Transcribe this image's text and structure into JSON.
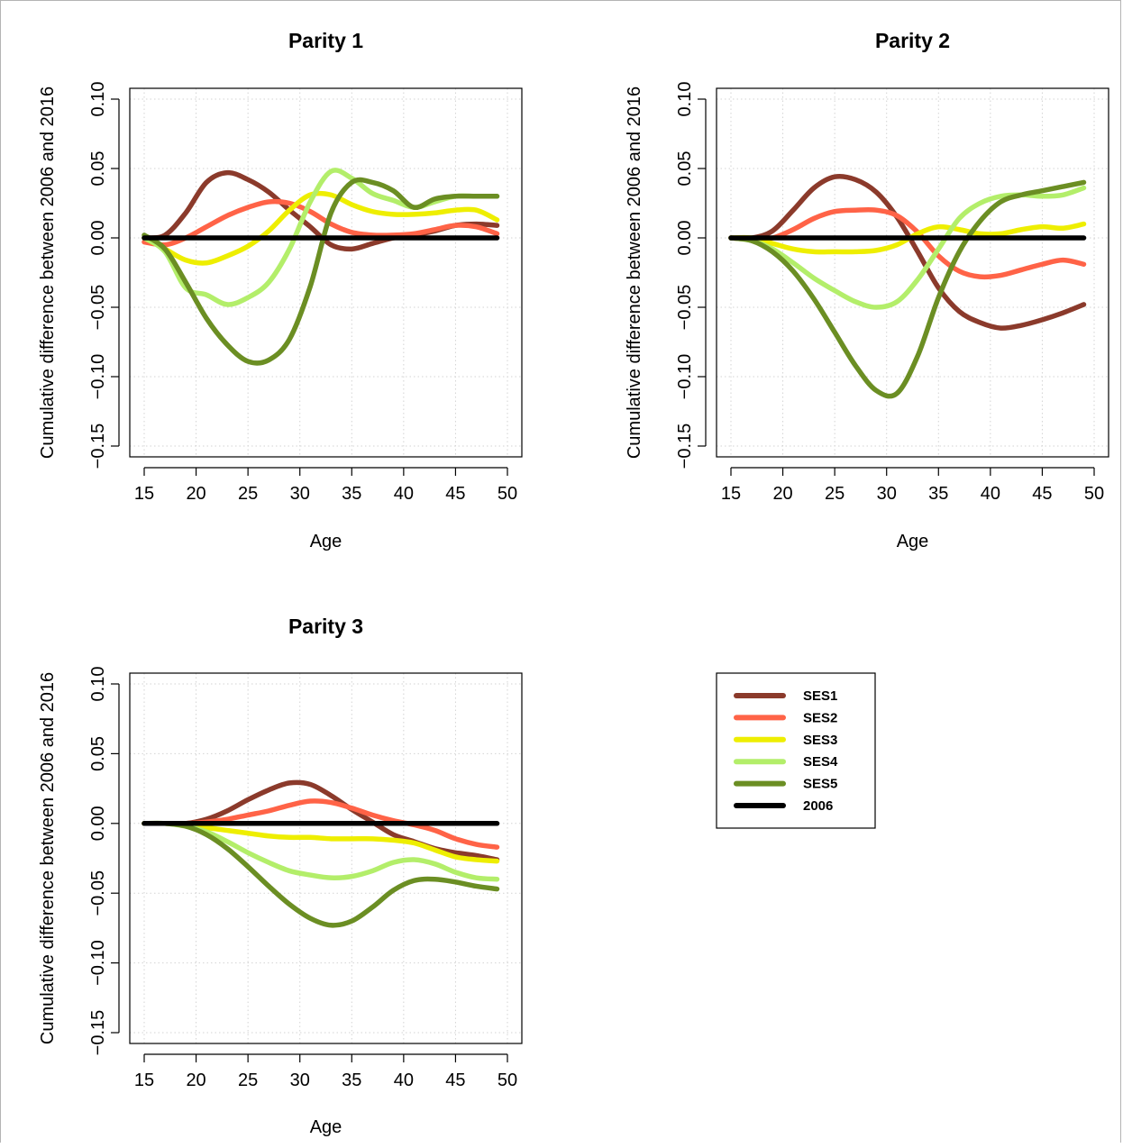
{
  "colors": {
    "SES1": "#8b3a2b",
    "SES2": "#ff6347",
    "SES3": "#eeee00",
    "SES4": "#b3ee6a",
    "SES5": "#6b8e23",
    "2006": "#000000"
  },
  "legend": {
    "entries": [
      "SES1",
      "SES2",
      "SES3",
      "SES4",
      "SES5",
      "2006"
    ]
  },
  "chart_data": [
    {
      "type": "line",
      "title": "Parity 1",
      "xlabel": "Age",
      "ylabel": "Cumulative difference between 2006 and 2016",
      "xlim": [
        15,
        50
      ],
      "ylim": [
        -0.15,
        0.1
      ],
      "xticks": [
        "15",
        "20",
        "25",
        "30",
        "35",
        "40",
        "45",
        "50"
      ],
      "yticks": [
        "−0.15",
        "−0.10",
        "−0.05",
        "0.00",
        "0.05",
        "0.10"
      ],
      "grid": true,
      "x": [
        15,
        17,
        19,
        21,
        23,
        25,
        27,
        29,
        31,
        33,
        35,
        37,
        39,
        41,
        43,
        45,
        47,
        49
      ],
      "series": [
        {
          "name": "SES1",
          "values": [
            0.0,
            0.002,
            0.018,
            0.04,
            0.047,
            0.042,
            0.033,
            0.02,
            0.008,
            -0.005,
            -0.008,
            -0.004,
            0.0,
            0.002,
            0.005,
            0.009,
            0.01,
            0.009
          ]
        },
        {
          "name": "SES2",
          "values": [
            -0.003,
            -0.005,
            0.0,
            0.008,
            0.016,
            0.022,
            0.026,
            0.025,
            0.019,
            0.01,
            0.004,
            0.002,
            0.002,
            0.003,
            0.006,
            0.009,
            0.008,
            0.003
          ]
        },
        {
          "name": "SES3",
          "values": [
            0.0,
            -0.008,
            -0.016,
            -0.018,
            -0.013,
            -0.006,
            0.005,
            0.02,
            0.031,
            0.031,
            0.024,
            0.019,
            0.017,
            0.017,
            0.018,
            0.02,
            0.02,
            0.013
          ]
        },
        {
          "name": "SES4",
          "values": [
            0.0,
            -0.01,
            -0.036,
            -0.041,
            -0.048,
            -0.043,
            -0.032,
            -0.008,
            0.026,
            0.048,
            0.043,
            0.032,
            0.027,
            0.022,
            0.026,
            0.03,
            0.03,
            0.03
          ]
        },
        {
          "name": "SES5",
          "values": [
            0.002,
            -0.008,
            -0.032,
            -0.058,
            -0.077,
            -0.089,
            -0.088,
            -0.073,
            -0.035,
            0.018,
            0.04,
            0.04,
            0.034,
            0.022,
            0.028,
            0.03,
            0.03,
            0.03
          ]
        },
        {
          "name": "2006",
          "values": [
            0,
            0,
            0,
            0,
            0,
            0,
            0,
            0,
            0,
            0,
            0,
            0,
            0,
            0,
            0,
            0,
            0,
            0
          ]
        }
      ]
    },
    {
      "type": "line",
      "title": "Parity 2",
      "xlabel": "Age",
      "ylabel": "Cumulative difference between 2006 and 2016",
      "xlim": [
        15,
        50
      ],
      "ylim": [
        -0.15,
        0.1
      ],
      "xticks": [
        "15",
        "20",
        "25",
        "30",
        "35",
        "40",
        "45",
        "50"
      ],
      "yticks": [
        "−0.15",
        "−0.10",
        "−0.05",
        "0.00",
        "0.05",
        "0.10"
      ],
      "grid": true,
      "x": [
        15,
        17,
        19,
        21,
        23,
        25,
        27,
        29,
        31,
        33,
        35,
        37,
        39,
        41,
        43,
        45,
        47,
        49
      ],
      "series": [
        {
          "name": "SES1",
          "values": [
            0.0,
            0.0,
            0.005,
            0.02,
            0.036,
            0.044,
            0.042,
            0.033,
            0.015,
            -0.01,
            -0.036,
            -0.053,
            -0.061,
            -0.065,
            -0.063,
            -0.059,
            -0.054,
            -0.048
          ]
        },
        {
          "name": "SES2",
          "values": [
            0.0,
            -0.001,
            0.0,
            0.006,
            0.014,
            0.019,
            0.02,
            0.02,
            0.016,
            0.004,
            -0.013,
            -0.024,
            -0.028,
            -0.027,
            -0.023,
            -0.019,
            -0.016,
            -0.019
          ]
        },
        {
          "name": "SES3",
          "values": [
            0.0,
            0.0,
            -0.004,
            -0.008,
            -0.01,
            -0.01,
            -0.01,
            -0.009,
            -0.005,
            0.003,
            0.008,
            0.006,
            0.003,
            0.003,
            0.006,
            0.008,
            0.007,
            0.01
          ]
        },
        {
          "name": "SES4",
          "values": [
            0.0,
            -0.002,
            -0.008,
            -0.018,
            -0.029,
            -0.038,
            -0.046,
            -0.05,
            -0.046,
            -0.03,
            -0.008,
            0.014,
            0.025,
            0.03,
            0.031,
            0.03,
            0.031,
            0.036
          ]
        },
        {
          "name": "SES5",
          "values": [
            0.0,
            -0.002,
            -0.01,
            -0.024,
            -0.044,
            -0.068,
            -0.092,
            -0.11,
            -0.112,
            -0.085,
            -0.043,
            -0.01,
            0.012,
            0.026,
            0.031,
            0.034,
            0.037,
            0.04
          ]
        },
        {
          "name": "2006",
          "values": [
            0,
            0,
            0,
            0,
            0,
            0,
            0,
            0,
            0,
            0,
            0,
            0,
            0,
            0,
            0,
            0,
            0,
            0
          ]
        }
      ]
    },
    {
      "type": "line",
      "title": "Parity 3",
      "xlabel": "Age",
      "ylabel": "Cumulative difference between 2006 and 2016",
      "xlim": [
        15,
        50
      ],
      "ylim": [
        -0.15,
        0.1
      ],
      "xticks": [
        "15",
        "20",
        "25",
        "30",
        "35",
        "40",
        "45",
        "50"
      ],
      "yticks": [
        "−0.15",
        "−0.10",
        "−0.05",
        "0.00",
        "0.05",
        "0.10"
      ],
      "grid": true,
      "x": [
        15,
        17,
        19,
        21,
        23,
        25,
        27,
        29,
        31,
        33,
        35,
        37,
        39,
        41,
        43,
        45,
        47,
        49
      ],
      "series": [
        {
          "name": "SES1",
          "values": [
            0.0,
            0.0,
            0.0,
            0.003,
            0.009,
            0.017,
            0.024,
            0.029,
            0.028,
            0.02,
            0.01,
            0.001,
            -0.008,
            -0.013,
            -0.018,
            -0.021,
            -0.023,
            -0.026
          ]
        },
        {
          "name": "SES2",
          "values": [
            0.0,
            0.0,
            0.0,
            0.001,
            0.003,
            0.006,
            0.009,
            0.013,
            0.016,
            0.015,
            0.011,
            0.006,
            0.002,
            -0.001,
            -0.005,
            -0.011,
            -0.015,
            -0.017
          ]
        },
        {
          "name": "SES3",
          "values": [
            0.0,
            0.0,
            -0.001,
            -0.003,
            -0.005,
            -0.007,
            -0.009,
            -0.01,
            -0.01,
            -0.011,
            -0.011,
            -0.011,
            -0.012,
            -0.014,
            -0.019,
            -0.024,
            -0.026,
            -0.027
          ]
        },
        {
          "name": "SES4",
          "values": [
            0.0,
            0.0,
            -0.002,
            -0.006,
            -0.013,
            -0.021,
            -0.028,
            -0.034,
            -0.037,
            -0.039,
            -0.038,
            -0.034,
            -0.028,
            -0.026,
            -0.029,
            -0.035,
            -0.039,
            -0.04
          ]
        },
        {
          "name": "SES5",
          "values": [
            0.0,
            0.0,
            -0.002,
            -0.008,
            -0.018,
            -0.031,
            -0.045,
            -0.058,
            -0.068,
            -0.073,
            -0.07,
            -0.06,
            -0.048,
            -0.041,
            -0.04,
            -0.042,
            -0.045,
            -0.047
          ]
        },
        {
          "name": "2006",
          "values": [
            0,
            0,
            0,
            0,
            0,
            0,
            0,
            0,
            0,
            0,
            0,
            0,
            0,
            0,
            0,
            0,
            0,
            0
          ]
        }
      ]
    }
  ]
}
